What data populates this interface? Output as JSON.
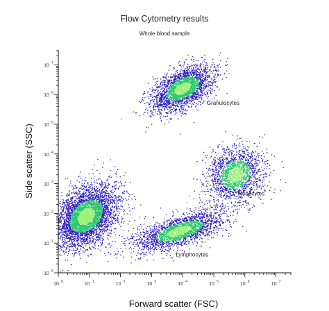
{
  "chart_data": {
    "type": "scatter",
    "title": "Flow Cytometry results",
    "subtitle": "Whole blood sample",
    "xlabel": "Forward scatter (FSC)",
    "ylabel": "Side scatter (SSC)",
    "xscale": "log",
    "yscale": "log",
    "xlim_decades": [
      0,
      7.5
    ],
    "ylim_decades": [
      0,
      7.5
    ],
    "x_tick_labels": [
      "10",
      "10",
      "10",
      "10",
      "10",
      "10",
      "10",
      "10"
    ],
    "x_tick_exponents": [
      "0",
      "1",
      "2",
      "3",
      "4",
      "5",
      "6",
      "7"
    ],
    "y_tick_labels": [
      "10",
      "10",
      "10",
      "10",
      "10",
      "10",
      "10",
      "10"
    ],
    "y_tick_exponents": [
      "0",
      "1",
      "2",
      "3",
      "4",
      "5",
      "6",
      "7"
    ],
    "colors": {
      "sparse": "#2b1bbf",
      "dense": "#29c86a",
      "core": "#9ef07a",
      "axis": "#111111"
    },
    "populations": [
      {
        "name": "Granulocytes",
        "center_log": [
          4.0,
          6.2
        ],
        "spread_log": [
          0.55,
          0.55
        ],
        "tilt": 0.6,
        "count": 2600
      },
      {
        "name": "Monocytes",
        "center_log": [
          5.7,
          3.3
        ],
        "spread_log": [
          0.5,
          0.75
        ],
        "tilt": 1.2,
        "count": 1800
      },
      {
        "name": "Lymphocytes",
        "center_log": [
          3.9,
          1.4
        ],
        "spread_log": [
          0.75,
          0.45
        ],
        "tilt": 0.35,
        "count": 2200
      },
      {
        "name": "",
        "center_log": [
          0.9,
          1.9
        ],
        "spread_log": [
          0.6,
          0.75
        ],
        "tilt": 1.1,
        "count": 4200
      }
    ]
  }
}
